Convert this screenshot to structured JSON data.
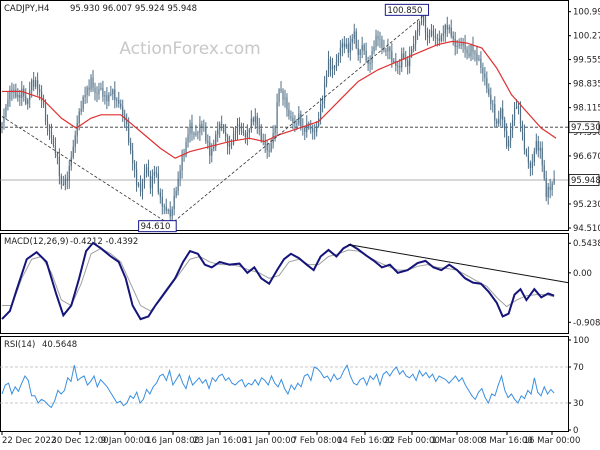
{
  "header": {
    "symbol": "CADJPY,H4",
    "ohlc": "95.930 96.007 95.924 95.948"
  },
  "watermark": "ActionForex.com",
  "colors": {
    "candle": "#4f6f86",
    "ma": "#e03030",
    "macd_line": "#14147a",
    "macd_signal": "#a0a0a0",
    "rsi": "#3a8fe0",
    "trendline": "#333333",
    "grid_dash": "#b8b8b8",
    "label_border": "#1a1a8c"
  },
  "chart_data": [
    {
      "type": "candlestick",
      "panel": "price",
      "ylim": [
        94.51,
        101.1
      ],
      "yticks": [
        "100.990",
        "100.270",
        "99.555",
        "98.835",
        "98.115",
        "97.390",
        "96.670",
        "95.950",
        "95.230",
        "94.510"
      ],
      "xticks": [
        "22 Dec 2022",
        "30 Dec 12:00",
        "9 Jan 00:00",
        "16 Jan 08:00",
        "23 Jan 16:00",
        "31 Jan 00:00",
        "7 Feb 08:00",
        "14 Feb 16:00",
        "22 Feb 00:00",
        "1 Mar 08:00",
        "8 Mar 16:00",
        "16 Mar 00:00"
      ],
      "close_path": [
        [
          0,
          97.6
        ],
        [
          5,
          98.3
        ],
        [
          10,
          98.7
        ],
        [
          15,
          98.4
        ],
        [
          20,
          98.6
        ],
        [
          25,
          98.2
        ],
        [
          30,
          98.9
        ],
        [
          35,
          98.8
        ],
        [
          40,
          98.4
        ],
        [
          45,
          97.6
        ],
        [
          50,
          97.2
        ],
        [
          55,
          96.7
        ],
        [
          60,
          95.8
        ],
        [
          65,
          95.9
        ],
        [
          70,
          96.6
        ],
        [
          75,
          97.5
        ],
        [
          80,
          98.2
        ],
        [
          85,
          98.6
        ],
        [
          90,
          98.9
        ],
        [
          95,
          98.5
        ],
        [
          100,
          98.7
        ],
        [
          105,
          98.3
        ],
        [
          110,
          98.6
        ],
        [
          115,
          98.4
        ],
        [
          120,
          98.1
        ],
        [
          125,
          97.7
        ],
        [
          130,
          96.8
        ],
        [
          135,
          96.0
        ],
        [
          140,
          95.6
        ],
        [
          145,
          96.4
        ],
        [
          150,
          95.8
        ],
        [
          155,
          96.3
        ],
        [
          160,
          95.3
        ],
        [
          165,
          95.1
        ],
        [
          170,
          94.9
        ],
        [
          175,
          95.5
        ],
        [
          180,
          96.3
        ],
        [
          185,
          96.9
        ],
        [
          190,
          97.6
        ],
        [
          195,
          97.2
        ],
        [
          200,
          97.6
        ],
        [
          205,
          97.4
        ],
        [
          210,
          96.7
        ],
        [
          215,
          97.1
        ],
        [
          220,
          97.7
        ],
        [
          225,
          97.3
        ],
        [
          230,
          96.9
        ],
        [
          235,
          97.4
        ],
        [
          240,
          97.6
        ],
        [
          245,
          97.2
        ],
        [
          250,
          97.5
        ],
        [
          255,
          97.9
        ],
        [
          260,
          97.4
        ],
        [
          265,
          97.0
        ],
        [
          270,
          96.8
        ],
        [
          275,
          97.4
        ],
        [
          280,
          98.7
        ],
        [
          285,
          98.4
        ],
        [
          290,
          97.9
        ],
        [
          295,
          97.6
        ],
        [
          300,
          97.8
        ],
        [
          305,
          97.4
        ],
        [
          310,
          97.6
        ],
        [
          315,
          97.3
        ],
        [
          320,
          97.8
        ],
        [
          325,
          98.6
        ],
        [
          330,
          99.5
        ],
        [
          335,
          99.2
        ],
        [
          340,
          99.7
        ],
        [
          345,
          100.1
        ],
        [
          350,
          99.8
        ],
        [
          355,
          100.4
        ],
        [
          360,
          99.7
        ],
        [
          365,
          100.0
        ],
        [
          370,
          99.3
        ],
        [
          375,
          99.9
        ],
        [
          380,
          100.3
        ],
        [
          385,
          99.8
        ],
        [
          390,
          99.9
        ],
        [
          395,
          99.5
        ],
        [
          400,
          99.3
        ],
        [
          405,
          99.7
        ],
        [
          410,
          99.4
        ],
        [
          415,
          100.0
        ],
        [
          420,
          100.5
        ],
        [
          425,
          100.85
        ],
        [
          430,
          100.2
        ],
        [
          435,
          100.4
        ],
        [
          440,
          100.1
        ],
        [
          445,
          100.3
        ],
        [
          450,
          100.6
        ],
        [
          455,
          100.2
        ],
        [
          460,
          99.9
        ],
        [
          465,
          100.1
        ],
        [
          470,
          99.7
        ],
        [
          475,
          99.9
        ],
        [
          480,
          99.6
        ],
        [
          485,
          99.3
        ],
        [
          490,
          98.7
        ],
        [
          495,
          98.2
        ],
        [
          500,
          97.6
        ],
        [
          505,
          98.1
        ],
        [
          510,
          96.9
        ],
        [
          515,
          97.6
        ],
        [
          520,
          98.3
        ],
        [
          525,
          97.5
        ],
        [
          530,
          96.6
        ],
        [
          535,
          96.3
        ],
        [
          540,
          97.1
        ],
        [
          545,
          96.7
        ],
        [
          550,
          95.5
        ],
        [
          555,
          95.8
        ],
        [
          558,
          95.948
        ]
      ],
      "ma_path": [
        [
          0,
          98.6
        ],
        [
          20,
          98.6
        ],
        [
          40,
          98.4
        ],
        [
          60,
          97.8
        ],
        [
          75,
          97.5
        ],
        [
          90,
          97.8
        ],
        [
          100,
          97.9
        ],
        [
          120,
          97.9
        ],
        [
          140,
          97.4
        ],
        [
          160,
          96.9
        ],
        [
          175,
          96.6
        ],
        [
          190,
          96.8
        ],
        [
          210,
          96.95
        ],
        [
          230,
          97.1
        ],
        [
          250,
          97.2
        ],
        [
          265,
          97.1
        ],
        [
          280,
          97.3
        ],
        [
          300,
          97.5
        ],
        [
          320,
          97.7
        ],
        [
          340,
          98.3
        ],
        [
          360,
          98.9
        ],
        [
          380,
          99.25
        ],
        [
          400,
          99.5
        ],
        [
          420,
          99.75
        ],
        [
          440,
          100.0
        ],
        [
          455,
          100.1
        ],
        [
          470,
          100.05
        ],
        [
          485,
          99.9
        ],
        [
          500,
          99.3
        ],
        [
          515,
          98.5
        ],
        [
          530,
          98.0
        ],
        [
          545,
          97.5
        ],
        [
          560,
          97.2
        ]
      ],
      "trendlines": [
        [
          [
            0,
            97.85
          ],
          [
            170,
            94.61
          ]
        ],
        [
          [
            170,
            94.61
          ],
          [
            425,
            100.85
          ]
        ]
      ],
      "hlines": [
        97.53,
        95.948
      ],
      "labels": [
        {
          "text": "100.850",
          "x": 425,
          "y": 100.85
        },
        {
          "text": "94.610",
          "x": 170,
          "y": 94.61
        }
      ],
      "price_tags": [
        "97.530",
        "95.948"
      ]
    },
    {
      "type": "line",
      "panel": "macd",
      "title": "MACD(12,26,9)",
      "values_text": "-0.4212 -0.4392",
      "ylim": [
        -1.05,
        0.64
      ],
      "yticks": [
        "0.5438",
        "0.00",
        "-0.9082"
      ],
      "macd_path": [
        [
          0,
          -0.85
        ],
        [
          8,
          -0.7
        ],
        [
          15,
          -0.3
        ],
        [
          25,
          0.25
        ],
        [
          35,
          0.38
        ],
        [
          45,
          0.2
        ],
        [
          55,
          -0.4
        ],
        [
          62,
          -0.78
        ],
        [
          70,
          -0.6
        ],
        [
          78,
          -0.1
        ],
        [
          85,
          0.4
        ],
        [
          92,
          0.55
        ],
        [
          100,
          0.45
        ],
        [
          110,
          0.3
        ],
        [
          118,
          0.2
        ],
        [
          125,
          -0.1
        ],
        [
          132,
          -0.6
        ],
        [
          140,
          -0.85
        ],
        [
          148,
          -0.8
        ],
        [
          155,
          -0.6
        ],
        [
          165,
          -0.35
        ],
        [
          175,
          -0.1
        ],
        [
          183,
          0.2
        ],
        [
          190,
          0.4
        ],
        [
          198,
          0.35
        ],
        [
          205,
          0.15
        ],
        [
          212,
          0.1
        ],
        [
          220,
          0.2
        ],
        [
          230,
          0.15
        ],
        [
          240,
          0.17
        ],
        [
          248,
          0.0
        ],
        [
          255,
          0.1
        ],
        [
          262,
          -0.1
        ],
        [
          270,
          -0.2
        ],
        [
          278,
          0.05
        ],
        [
          285,
          0.25
        ],
        [
          292,
          0.35
        ],
        [
          300,
          0.27
        ],
        [
          308,
          0.15
        ],
        [
          315,
          0.05
        ],
        [
          322,
          0.3
        ],
        [
          330,
          0.42
        ],
        [
          338,
          0.3
        ],
        [
          345,
          0.45
        ],
        [
          352,
          0.52
        ],
        [
          360,
          0.43
        ],
        [
          368,
          0.32
        ],
        [
          376,
          0.22
        ],
        [
          384,
          0.1
        ],
        [
          392,
          0.15
        ],
        [
          400,
          0.0
        ],
        [
          410,
          0.05
        ],
        [
          420,
          0.18
        ],
        [
          428,
          0.22
        ],
        [
          436,
          0.1
        ],
        [
          444,
          0.05
        ],
        [
          452,
          0.15
        ],
        [
          460,
          0.05
        ],
        [
          468,
          -0.1
        ],
        [
          476,
          -0.18
        ],
        [
          484,
          -0.2
        ],
        [
          492,
          -0.35
        ],
        [
          500,
          -0.55
        ],
        [
          506,
          -0.8
        ],
        [
          512,
          -0.75
        ],
        [
          518,
          -0.4
        ],
        [
          524,
          -0.3
        ],
        [
          530,
          -0.5
        ],
        [
          538,
          -0.3
        ],
        [
          545,
          -0.45
        ],
        [
          552,
          -0.38
        ],
        [
          558,
          -0.42
        ]
      ],
      "signal_path": [
        [
          0,
          -0.6
        ],
        [
          10,
          -0.6
        ],
        [
          20,
          -0.1
        ],
        [
          30,
          0.25
        ],
        [
          40,
          0.3
        ],
        [
          50,
          0.0
        ],
        [
          60,
          -0.5
        ],
        [
          70,
          -0.6
        ],
        [
          80,
          -0.2
        ],
        [
          90,
          0.35
        ],
        [
          100,
          0.45
        ],
        [
          110,
          0.35
        ],
        [
          120,
          0.2
        ],
        [
          130,
          -0.2
        ],
        [
          140,
          -0.6
        ],
        [
          150,
          -0.7
        ],
        [
          160,
          -0.5
        ],
        [
          170,
          -0.25
        ],
        [
          180,
          0.0
        ],
        [
          190,
          0.25
        ],
        [
          200,
          0.3
        ],
        [
          210,
          0.2
        ],
        [
          220,
          0.15
        ],
        [
          230,
          0.15
        ],
        [
          240,
          0.12
        ],
        [
          250,
          0.05
        ],
        [
          260,
          0.0
        ],
        [
          270,
          -0.1
        ],
        [
          280,
          -0.05
        ],
        [
          290,
          0.2
        ],
        [
          300,
          0.25
        ],
        [
          310,
          0.15
        ],
        [
          320,
          0.15
        ],
        [
          330,
          0.3
        ],
        [
          340,
          0.35
        ],
        [
          350,
          0.42
        ],
        [
          360,
          0.4
        ],
        [
          370,
          0.3
        ],
        [
          380,
          0.2
        ],
        [
          390,
          0.12
        ],
        [
          400,
          0.05
        ],
        [
          410,
          0.05
        ],
        [
          420,
          0.12
        ],
        [
          430,
          0.15
        ],
        [
          440,
          0.1
        ],
        [
          450,
          0.08
        ],
        [
          460,
          0.05
        ],
        [
          470,
          -0.05
        ],
        [
          480,
          -0.15
        ],
        [
          490,
          -0.25
        ],
        [
          500,
          -0.45
        ],
        [
          510,
          -0.62
        ],
        [
          520,
          -0.5
        ],
        [
          530,
          -0.42
        ],
        [
          540,
          -0.4
        ],
        [
          550,
          -0.4
        ],
        [
          558,
          -0.44
        ]
      ],
      "trendline": [
        [
          350,
          0.52
        ],
        [
          572,
          -0.18
        ]
      ]
    },
    {
      "type": "line",
      "panel": "rsi",
      "title": "RSI(14)",
      "value_text": "40.5648",
      "ylim": [
        0,
        100
      ],
      "yticks": [
        "100",
        "70",
        "30",
        "0"
      ],
      "levels": [
        70,
        30
      ],
      "values": [
        40,
        50,
        52,
        40,
        48,
        43,
        52,
        60,
        55,
        38,
        38,
        30,
        34,
        32,
        28,
        25,
        32,
        44,
        40,
        44,
        58,
        54,
        72,
        55,
        58,
        60,
        50,
        54,
        60,
        48,
        56,
        52,
        48,
        42,
        36,
        30,
        32,
        27,
        30,
        38,
        35,
        42,
        30,
        34,
        45,
        40,
        48,
        52,
        60,
        62,
        55,
        66,
        50,
        56,
        62,
        52,
        46,
        60,
        50,
        54,
        58,
        52,
        56,
        46,
        58,
        54,
        60,
        62,
        55,
        58,
        52,
        50,
        54,
        56,
        48,
        52,
        50,
        56,
        50,
        58,
        55,
        50,
        60,
        52,
        48,
        56,
        46,
        40,
        50,
        45,
        52,
        48,
        60,
        62,
        55,
        70,
        68,
        64,
        58,
        60,
        54,
        62,
        56,
        58,
        66,
        72,
        60,
        52,
        50,
        56,
        58,
        50,
        60,
        56,
        62,
        50,
        62,
        65,
        60,
        66,
        70,
        62,
        66,
        60,
        58,
        62,
        55,
        66,
        60,
        64,
        58,
        62,
        54,
        60,
        58,
        56,
        52,
        56,
        60,
        54,
        58,
        50,
        44,
        38,
        34,
        42,
        46,
        36,
        30,
        40,
        38,
        50,
        60,
        44,
        36,
        40,
        34,
        30,
        38,
        35,
        44,
        40,
        58,
        42,
        38,
        48,
        40,
        45,
        41
      ]
    }
  ]
}
